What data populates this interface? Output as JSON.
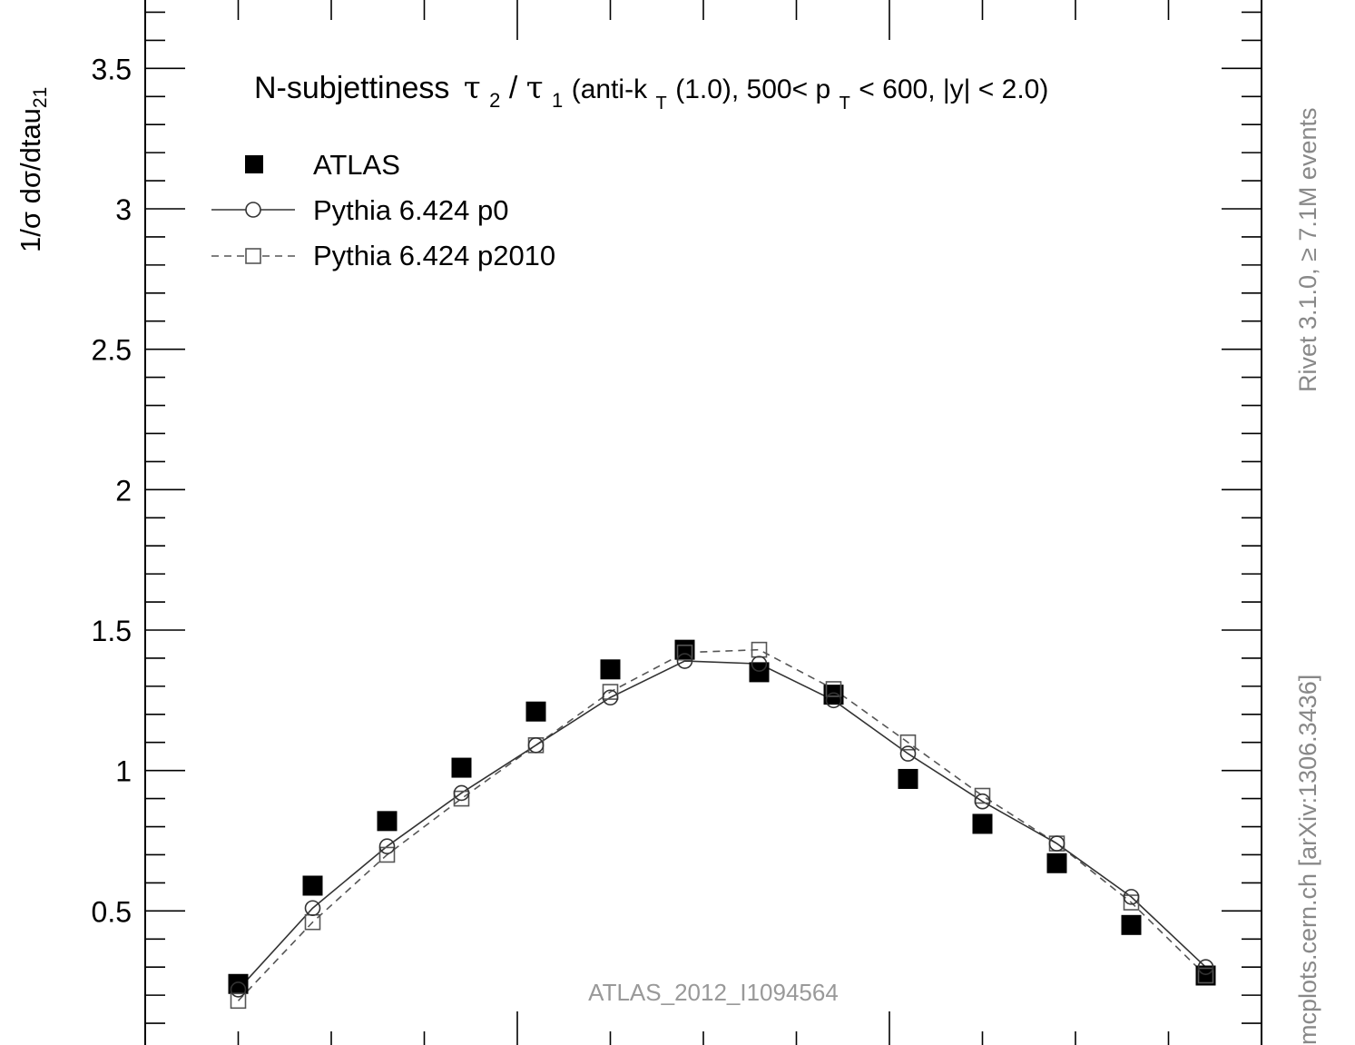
{
  "chart_data": {
    "type": "scatter",
    "title": "N-subjettiness τ2/τ1 (anti-kT(1.0), 500< pT < 600, |y| < 2.0)",
    "title_parts": {
      "main": "N-subjettiness",
      "tau": "τ",
      "sub2": "2",
      "slash": "/",
      "sub1": "1",
      "open": " (anti-k",
      "subT": "T",
      "mid": "(1.0), 500< p",
      "end": " < 600, |y| < 2.0)"
    },
    "ylabel": "1/σ dσ/dtau",
    "ylabel_sub": "21",
    "ylim": [
      0,
      3.75
    ],
    "xlim": [
      0,
      1.2
    ],
    "y_ticks": [
      0.5,
      1,
      1.5,
      2,
      2.5,
      3,
      3.5
    ],
    "y_tick_labels": [
      "0.5",
      "1",
      "1.5",
      "2",
      "2.5",
      "3",
      "3.5"
    ],
    "legend_position": "top-left",
    "series": [
      {
        "name": "ATLAS",
        "marker": "filled-square",
        "color": "#000000",
        "x": [
          0.1,
          0.18,
          0.26,
          0.34,
          0.42,
          0.5,
          0.58,
          0.66,
          0.74,
          0.82,
          0.9,
          0.98,
          1.06,
          1.14
        ],
        "values": [
          0.24,
          0.59,
          0.82,
          1.01,
          1.21,
          1.36,
          1.43,
          1.35,
          1.27,
          0.97,
          0.81,
          0.67,
          0.45,
          0.27
        ]
      },
      {
        "name": "Pythia 6.424 p0",
        "marker": "open-circle",
        "line": "solid",
        "color": "#333333",
        "x": [
          0.1,
          0.18,
          0.26,
          0.34,
          0.42,
          0.5,
          0.58,
          0.66,
          0.74,
          0.82,
          0.9,
          0.98,
          1.06,
          1.14
        ],
        "values": [
          0.22,
          0.51,
          0.73,
          0.92,
          1.09,
          1.26,
          1.39,
          1.38,
          1.25,
          1.06,
          0.89,
          0.74,
          0.55,
          0.3
        ]
      },
      {
        "name": "Pythia 6.424 p2010",
        "marker": "open-square",
        "line": "dashed",
        "color": "#555555",
        "x": [
          0.1,
          0.18,
          0.26,
          0.34,
          0.42,
          0.5,
          0.58,
          0.66,
          0.74,
          0.82,
          0.9,
          0.98,
          1.06,
          1.14
        ],
        "values": [
          0.18,
          0.46,
          0.7,
          0.9,
          1.09,
          1.28,
          1.42,
          1.43,
          1.29,
          1.1,
          0.91,
          0.74,
          0.53,
          0.27
        ]
      }
    ],
    "watermark": "ATLAS_2012_I1094564",
    "right_text_top": "Rivet 3.1.0, ≥ 7.1M events",
    "right_text_bottom": "mcplots.cern.ch [arXiv:1306.3436]",
    "axis_color": "#000000",
    "annotation_color": "#888888"
  }
}
